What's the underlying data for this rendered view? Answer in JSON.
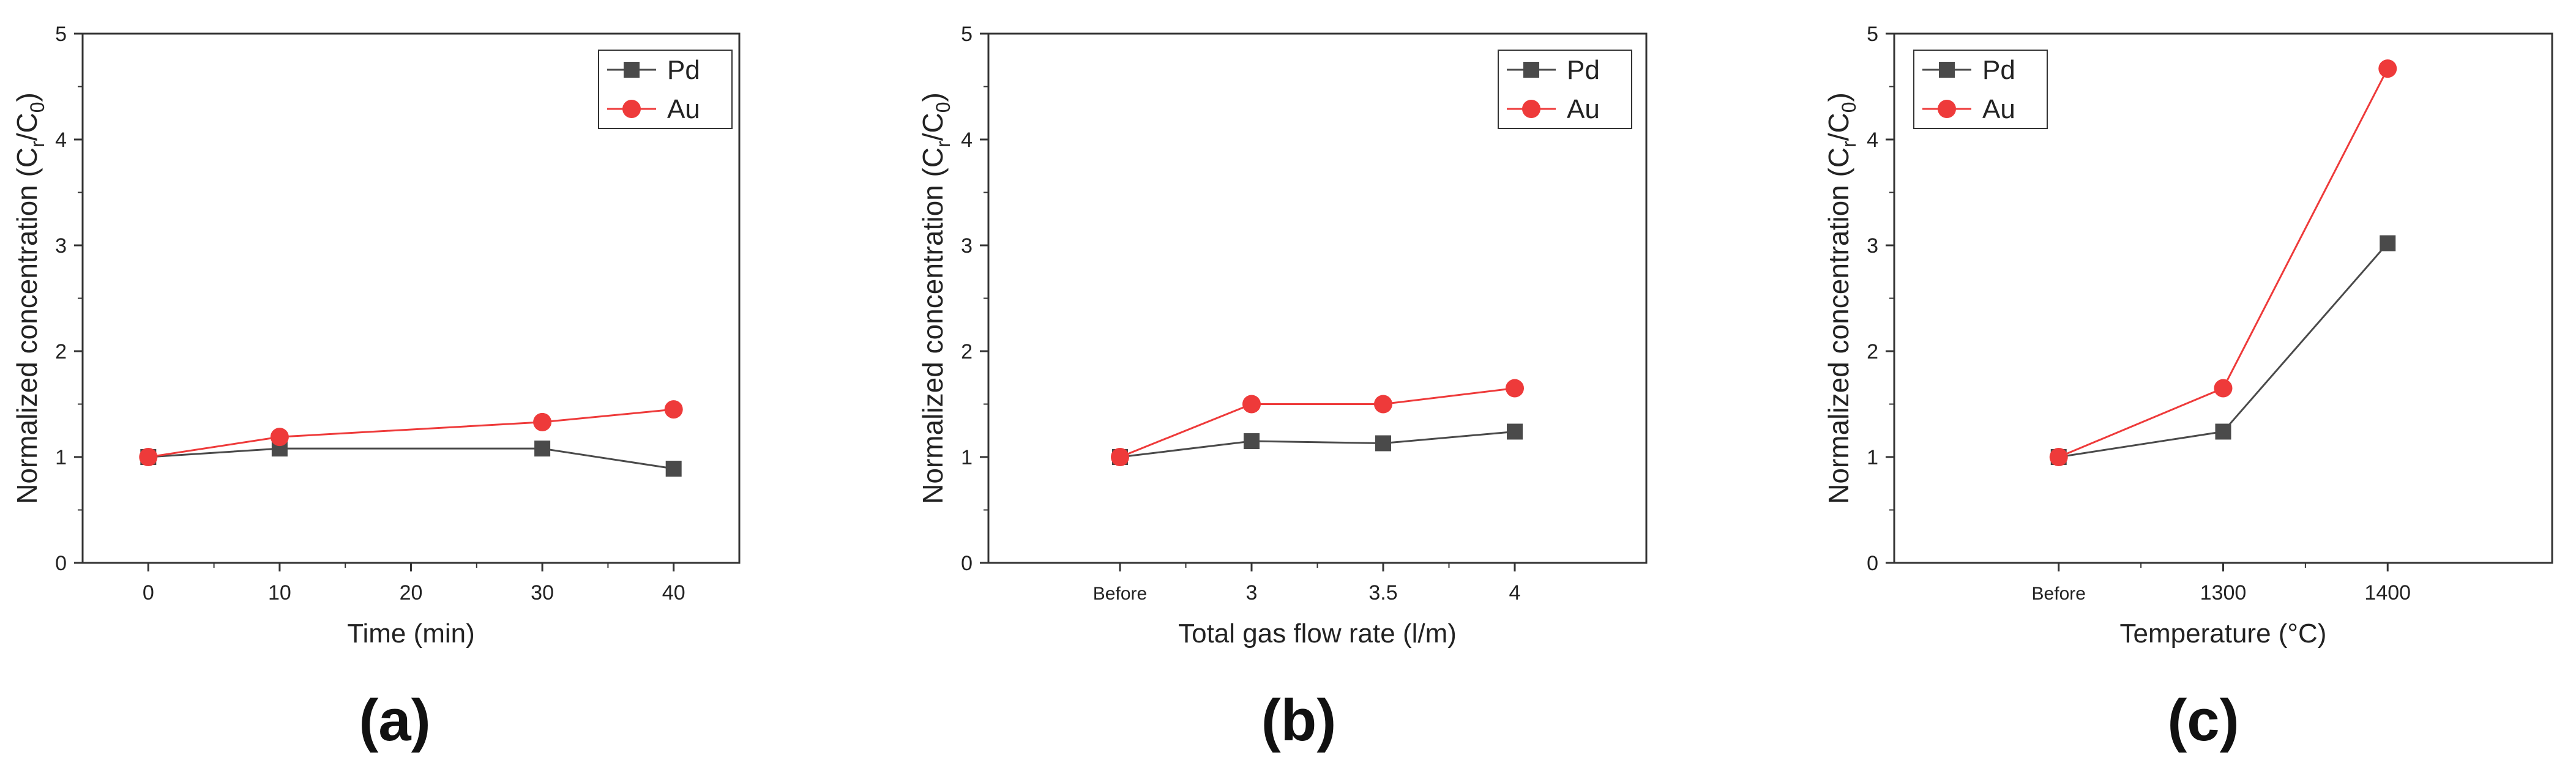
{
  "figure": {
    "panel_labels": [
      "(a)",
      "(b)",
      "(c)"
    ]
  },
  "chart_data": [
    {
      "type": "line",
      "panel": "(a)",
      "xlabel": "Time (min)",
      "ylabel_main": "Normalized concentration (C",
      "ylabel_sub1": "r",
      "ylabel_mid": "/C",
      "ylabel_sub2": "0",
      "ylabel_end": ")",
      "x_scale": "linear",
      "xlim": [
        -5,
        45
      ],
      "ylim": [
        0,
        5
      ],
      "x_ticks": [
        0,
        10,
        20,
        30,
        40
      ],
      "x_tick_labels": [
        "0",
        "10",
        "20",
        "30",
        "40"
      ],
      "y_ticks": [
        0,
        1,
        2,
        3,
        4,
        5
      ],
      "y_tick_labels": [
        "0",
        "1",
        "2",
        "3",
        "4",
        "5"
      ],
      "x": [
        0,
        10,
        30,
        40
      ],
      "series": [
        {
          "name": "Pd",
          "marker": "square",
          "color": "#4a4a4a",
          "values": [
            1.0,
            1.08,
            1.08,
            0.89
          ]
        },
        {
          "name": "Au",
          "marker": "circle",
          "color": "#ee3a3a",
          "values": [
            1.0,
            1.19,
            1.33,
            1.45
          ]
        }
      ],
      "legend_position": "top-right"
    },
    {
      "type": "line",
      "panel": "(b)",
      "xlabel": "Total gas flow rate (l/m)",
      "ylabel_main": "Normalized concentration (C",
      "ylabel_sub1": "r",
      "ylabel_mid": "/C",
      "ylabel_sub2": "0",
      "ylabel_end": ")",
      "x_scale": "categorical",
      "categories": [
        "Before",
        "3",
        "3.5",
        "4"
      ],
      "ylim": [
        0,
        5
      ],
      "y_ticks": [
        0,
        1,
        2,
        3,
        4,
        5
      ],
      "y_tick_labels": [
        "0",
        "1",
        "2",
        "3",
        "4",
        "5"
      ],
      "series": [
        {
          "name": "Pd",
          "marker": "square",
          "color": "#4a4a4a",
          "values": [
            1.0,
            1.15,
            1.13,
            1.24
          ]
        },
        {
          "name": "Au",
          "marker": "circle",
          "color": "#ee3a3a",
          "values": [
            1.0,
            1.5,
            1.5,
            1.65
          ]
        }
      ],
      "legend_position": "top-right"
    },
    {
      "type": "line",
      "panel": "(c)",
      "xlabel": "Temperature (°C)",
      "ylabel_main": "Normalized concentration (C",
      "ylabel_sub1": "r",
      "ylabel_mid": "/C",
      "ylabel_sub2": "0",
      "ylabel_end": ")",
      "x_scale": "categorical",
      "categories": [
        "Before",
        "1300",
        "1400"
      ],
      "ylim": [
        0,
        5
      ],
      "y_ticks": [
        0,
        1,
        2,
        3,
        4,
        5
      ],
      "y_tick_labels": [
        "0",
        "1",
        "2",
        "3",
        "4",
        "5"
      ],
      "series": [
        {
          "name": "Pd",
          "marker": "square",
          "color": "#4a4a4a",
          "values": [
            1.0,
            1.24,
            3.02
          ]
        },
        {
          "name": "Au",
          "marker": "circle",
          "color": "#ee3a3a",
          "values": [
            1.0,
            1.65,
            4.67
          ]
        }
      ],
      "legend_position": "top-left"
    }
  ]
}
